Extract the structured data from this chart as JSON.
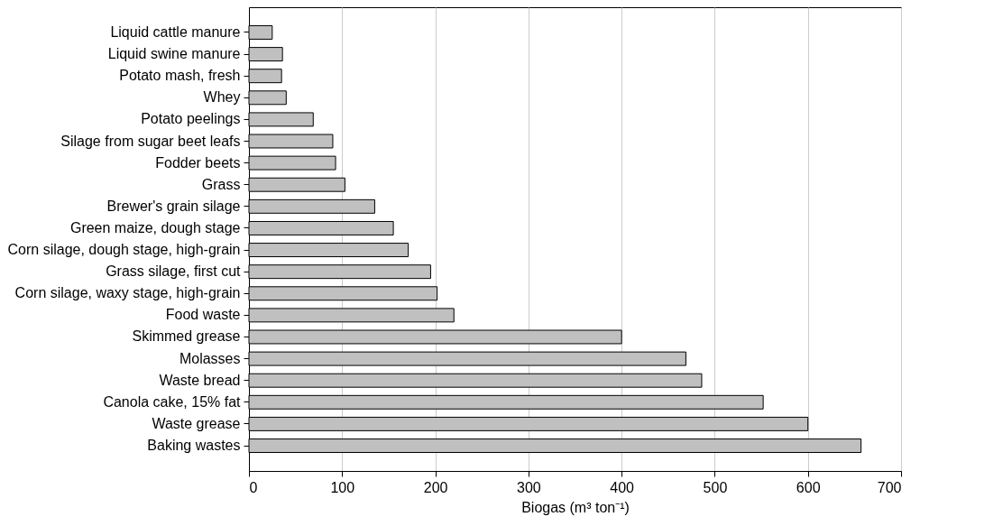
{
  "chart_data": {
    "type": "bar",
    "orientation": "horizontal",
    "xlabel": "Biogas (m³ ton⁻¹)",
    "categories": [
      "Liquid cattle manure",
      "Liquid swine manure",
      "Potato mash, fresh",
      "Whey",
      "Potato peelings",
      "Silage from sugar beet leafs",
      "Fodder beets",
      "Grass",
      "Brewer's grain silage",
      "Green maize, dough stage",
      "Corn silage, dough stage, high-grain",
      "Grass silage, first cut",
      "Corn silage, waxy stage, high-grain",
      "Food waste",
      "Skimmed grease",
      "Molasses",
      "Waste bread",
      "Canola cake, 15% fat",
      "Waste grease",
      "Baking wastes"
    ],
    "values": [
      25,
      36,
      35,
      40,
      69,
      90,
      93,
      103,
      135,
      155,
      171,
      195,
      202,
      220,
      400,
      469,
      486,
      552,
      600,
      657
    ],
    "color": "#c0c0c0",
    "xlim": [
      0,
      700
    ],
    "xticks": [
      0,
      100,
      200,
      300,
      400,
      500,
      600,
      700
    ],
    "grid": "x"
  }
}
